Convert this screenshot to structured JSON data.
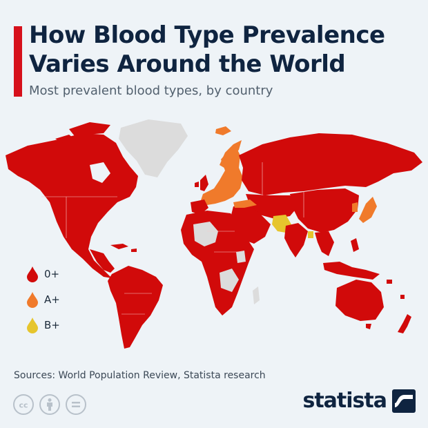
{
  "header": {
    "title": "How Blood Type Prevalence Varies Around the World",
    "subtitle": "Most prevalent blood types, by country"
  },
  "legend": {
    "items": [
      {
        "label": "0+",
        "color": "#d10a0a"
      },
      {
        "label": "A+",
        "color": "#f07a2b"
      },
      {
        "label": "B+",
        "color": "#e6c52d"
      }
    ],
    "no_data_color": "#dcdcdc"
  },
  "footer": {
    "sources": "Sources: World Population Review, Statista research",
    "license_icons": [
      "cc-icon",
      "attribution-icon",
      "no-derivatives-icon"
    ],
    "brand": "statista",
    "brand_icon": "statista-logo-icon"
  },
  "colors": {
    "accent": "#d6101b",
    "title": "#0f2440",
    "background": "#eef3f7"
  }
}
